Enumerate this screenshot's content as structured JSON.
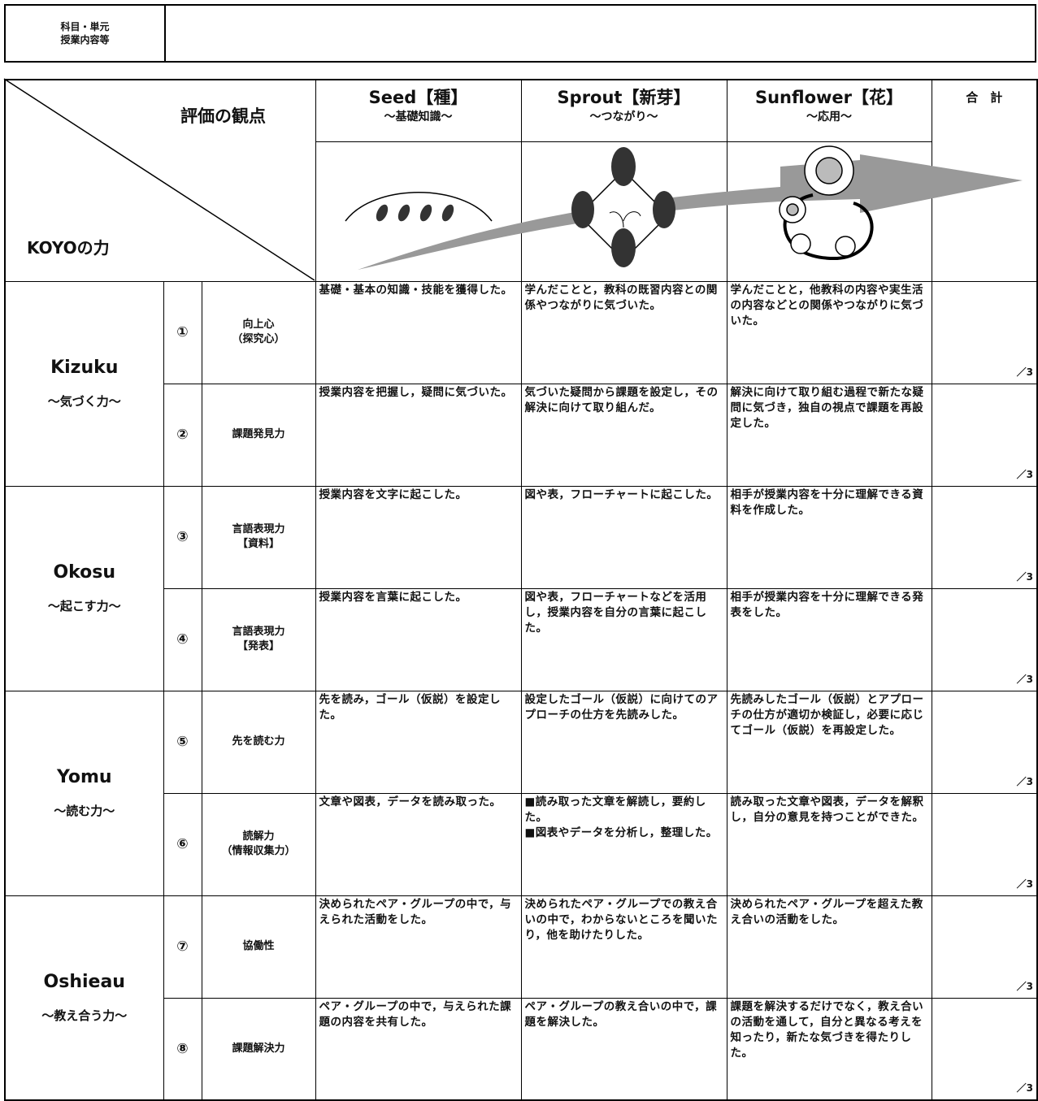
{
  "header": {
    "subject_label": "科目・単元\n授業内容等"
  },
  "table": {
    "corner_top": "評価の観点",
    "corner_bottom": "KOYOの力",
    "stages": [
      {
        "name": "Seed【種】",
        "sub": "～基礎知識～"
      },
      {
        "name": "Sprout【新芽】",
        "sub": "～つながり～"
      },
      {
        "name": "Sunflower【花】",
        "sub": "～応用～"
      }
    ],
    "total_label": "合　計",
    "groups": [
      {
        "name": "Kizuku",
        "sub": "～気づく力～",
        "rows": [
          {
            "num": "①",
            "ability": "向上心\n（探究心）",
            "cells": [
              "基礎・基本の知識・技能を獲得した。",
              "学んだことと，教科の既習内容との関係やつながりに気づいた。",
              "学んだことと，他教科の内容や実生活の内容などとの関係やつながりに気づいた。"
            ],
            "score": "／3"
          },
          {
            "num": "②",
            "ability": "課題発見力",
            "cells": [
              "授業内容を把握し，疑問に気づいた。",
              "気づいた疑問から課題を設定し，その解決に向けて取り組んだ。",
              "解決に向けて取り組む過程で新たな疑問に気づき，独自の視点で課題を再設定した。"
            ],
            "score": "／3"
          }
        ]
      },
      {
        "name": "Okosu",
        "sub": "～起こす力～",
        "rows": [
          {
            "num": "③",
            "ability": "言語表現力\n【資料】",
            "cells": [
              "授業内容を文字に起こした。",
              "図や表，フローチャートに起こした。",
              "相手が授業内容を十分に理解できる資料を作成した。"
            ],
            "score": "／3"
          },
          {
            "num": "④",
            "ability": "言語表現力\n【発表】",
            "cells": [
              "授業内容を言葉に起こした。",
              "図や表，フローチャートなどを活用し，授業内容を自分の言葉に起こした。",
              "相手が授業内容を十分に理解できる発表をした。"
            ],
            "score": "／3"
          }
        ]
      },
      {
        "name": "Yomu",
        "sub": "～読む力～",
        "rows": [
          {
            "num": "⑤",
            "ability": "先を読む力",
            "cells": [
              "先を読み，ゴール（仮説）を設定した。",
              "設定したゴール（仮説）に向けてのアプローチの仕方を先読みした。",
              "先読みしたゴール（仮説）とアプローチの仕方が適切か検証し，必要に応じてゴール（仮説）を再設定した。"
            ],
            "score": "／3"
          },
          {
            "num": "⑥",
            "ability": "読解力\n（情報収集力）",
            "cells": [
              "文章や図表，データを読み取った。",
              "■読み取った文章を解読し，要約した。\n■図表やデータを分析し，整理した。",
              "読み取った文章や図表，データを解釈し，自分の意見を持つことができた。"
            ],
            "score": "／3"
          }
        ]
      },
      {
        "name": "Oshieau",
        "sub": "～教え合う力～",
        "rows": [
          {
            "num": "⑦",
            "ability": "協働性",
            "cells": [
              "決められたペア・グループの中で，与えられた活動をした。",
              "決められたペア・グループでの教え合いの中で，わからないところを聞いたり，他を助けたりした。",
              "決められたペア・グループを超えた教え合いの活動をした。"
            ],
            "score": "／3"
          },
          {
            "num": "⑧",
            "ability": "課題解決力",
            "cells": [
              "ペア・グループの中で，与えられた課題の内容を共有した。",
              "ペア・グループの教え合いの中で，課題を解決した。",
              "課題を解決するだけでなく，教え合いの活動を通して，自分と異なる考えを知ったり，新たな気づきを得たりした。"
            ],
            "score": "／3"
          }
        ]
      }
    ]
  }
}
